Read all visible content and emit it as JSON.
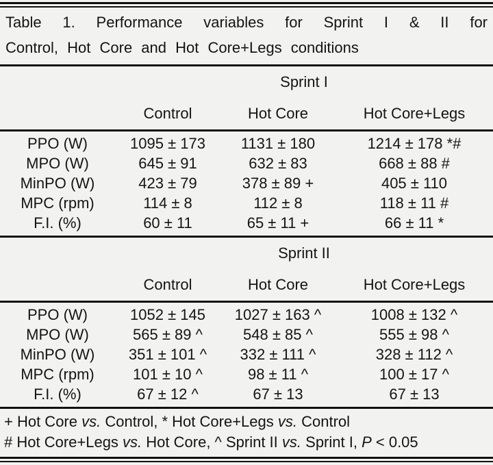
{
  "table": {
    "title_line1": "Table 1. Performance variables for Sprint I & II for",
    "title_line2": "Control, Hot Core and Hot Core+Legs conditions",
    "sections": [
      {
        "name": "Sprint I",
        "columns": [
          "Control",
          "Hot Core",
          "Hot Core+Legs"
        ],
        "rows": [
          {
            "label": "PPO (W)",
            "values": [
              "1095 ± 173",
              "1131 ± 180",
              "1214 ± 178 *#"
            ]
          },
          {
            "label": "MPO (W)",
            "values": [
              "645 ± 91",
              "632 ± 83",
              "668 ± 88 #"
            ]
          },
          {
            "label": "MinPO (W)",
            "values": [
              "423 ± 79",
              "378 ± 89 +",
              "405 ± 110"
            ]
          },
          {
            "label": "MPC (rpm)",
            "values": [
              "114 ± 8",
              "112 ± 8",
              "118 ± 11 #"
            ]
          },
          {
            "label": "F.I. (%)",
            "values": [
              "60 ± 11",
              "65 ± 11 +",
              "66 ± 11 *"
            ]
          }
        ]
      },
      {
        "name": "Sprint II",
        "columns": [
          "Control",
          "Hot Core",
          "Hot Core+Legs"
        ],
        "rows": [
          {
            "label": "PPO (W)",
            "values": [
              "1052 ± 145",
              "1027 ± 163 ^",
              "1008 ± 132 ^"
            ]
          },
          {
            "label": "MPO (W)",
            "values": [
              "565 ± 89 ^",
              "548 ± 85 ^",
              "555 ± 98 ^"
            ]
          },
          {
            "label": "MinPO (W)",
            "values": [
              "351 ± 101 ^",
              "332 ± 111 ^",
              "328 ± 112 ^"
            ]
          },
          {
            "label": "MPC (rpm)",
            "values": [
              "101 ± 10 ^",
              "98 ± 11 ^",
              "100 ± 17 ^"
            ]
          },
          {
            "label": "F.I. (%)",
            "values": [
              "67 ± 12 ^",
              "67 ± 13",
              "67 ± 13"
            ]
          }
        ]
      }
    ],
    "footnotes": [
      {
        "parts": [
          "+ Hot Core ",
          "vs.",
          " Control, * Hot Core+Legs ",
          "vs.",
          " Control"
        ]
      },
      {
        "parts": [
          "# Hot Core+Legs ",
          "vs.",
          " Hot Core, ^ Sprint II ",
          "vs.",
          " Sprint I, ",
          "P",
          " < 0.05"
        ]
      }
    ]
  }
}
